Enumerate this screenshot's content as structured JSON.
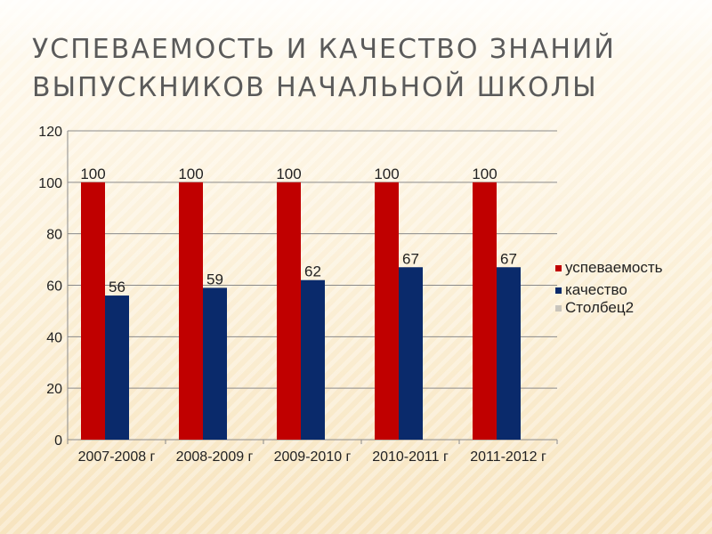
{
  "slide": {
    "title_lines": [
      "УСПЕВАЕМОСТЬ И КАЧЕСТВО ЗНАНИЙ",
      "ВЫПУСКНИКОВ НАЧАЛЬНОЙ ШКОЛЫ"
    ]
  },
  "colors": {
    "background": "#fbefd6",
    "title": "#5a5a5a",
    "uspevaemost": "#c00000",
    "kachestvo": "#0a2a6b",
    "stolbec2": "#a8a8a8"
  },
  "chart_data": {
    "type": "bar",
    "categories": [
      "2007-2008 г",
      "2008-2009 г",
      "2009-2010 г",
      "2010-2011 г",
      "2011-2012 г"
    ],
    "series": [
      {
        "name": "успеваемость",
        "values": [
          100,
          100,
          100,
          100,
          100
        ],
        "color": "#c00000"
      },
      {
        "name": "качество",
        "values": [
          56,
          59,
          62,
          67,
          67
        ],
        "color": "#0a2a6b"
      },
      {
        "name": "Столбец2",
        "values": [
          null,
          null,
          null,
          null,
          null
        ],
        "color": "#a8a8a8"
      }
    ],
    "yticks": [
      0,
      20,
      40,
      60,
      80,
      100,
      120
    ],
    "ylim": [
      0,
      120
    ],
    "grid": true,
    "legend_position": "right"
  }
}
